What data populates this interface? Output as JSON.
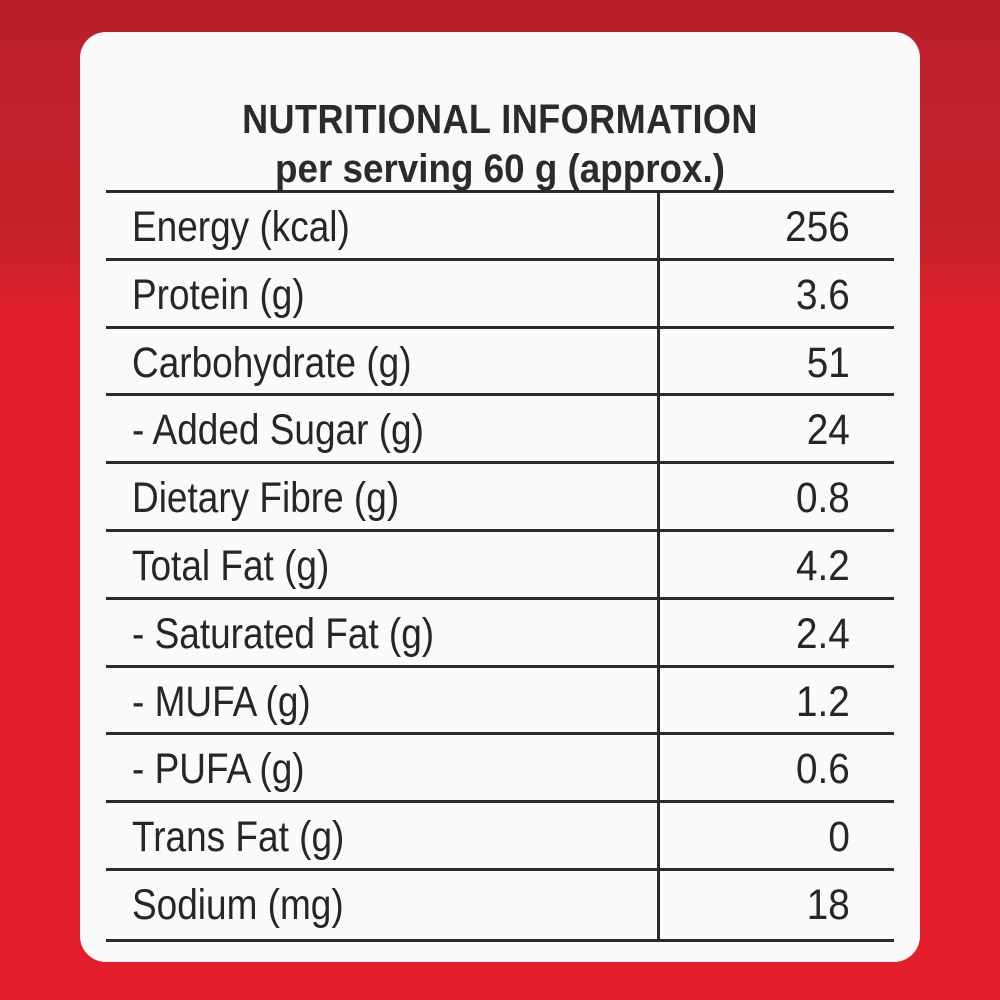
{
  "header": {
    "title": "NUTRITIONAL INFORMATION",
    "subtitle": "per serving 60 g (approx.)"
  },
  "rows": [
    {
      "name": "Energy (kcal)",
      "value": "256"
    },
    {
      "name": "Protein (g)",
      "value": "3.6"
    },
    {
      "name": "Carbohydrate (g)",
      "value": "51"
    },
    {
      "name": "- Added Sugar (g)",
      "value": "24"
    },
    {
      "name": "Dietary Fibre (g)",
      "value": "0.8"
    },
    {
      "name": "Total Fat (g)",
      "value": "4.2"
    },
    {
      "name": "- Saturated Fat (g)",
      "value": "2.4"
    },
    {
      "name": "- MUFA (g)",
      "value": "1.2"
    },
    {
      "name": "- PUFA (g)",
      "value": "0.6"
    },
    {
      "name": "Trans Fat (g)",
      "value": "0"
    },
    {
      "name": "Sodium (mg)",
      "value": "18"
    }
  ],
  "colors": {
    "background": "#e41e2b",
    "panel": "#fafafa",
    "text": "#262626"
  }
}
